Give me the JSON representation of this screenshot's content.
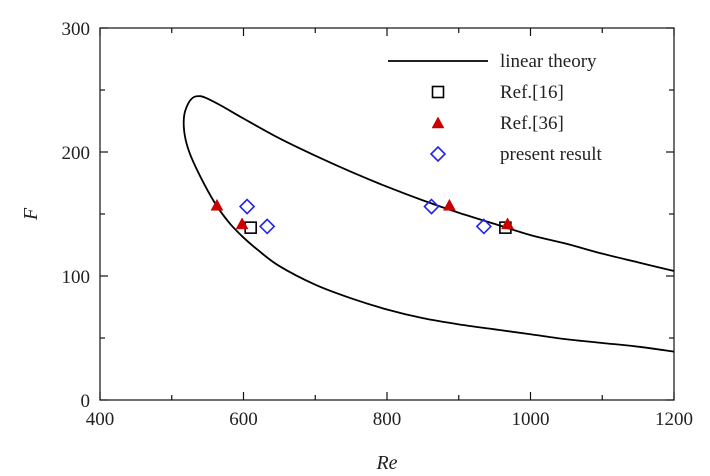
{
  "chart_data": {
    "type": "scatter",
    "title": "",
    "xlabel": "Re",
    "ylabel": "F",
    "xlim": [
      400,
      1200
    ],
    "ylim": [
      0,
      300
    ],
    "xticks": [
      400,
      600,
      800,
      1000,
      1200
    ],
    "yticks": [
      0,
      100,
      200,
      300
    ],
    "grid": false,
    "legend_position": "top-right",
    "series": [
      {
        "name": "linear theory",
        "kind": "line",
        "color": "#000000",
        "points": [
          [
            1200,
            104
          ],
          [
            1150,
            111
          ],
          [
            1100,
            118
          ],
          [
            1050,
            126
          ],
          [
            1000,
            133
          ],
          [
            950,
            142
          ],
          [
            900,
            151
          ],
          [
            850,
            161
          ],
          [
            800,
            172
          ],
          [
            750,
            184
          ],
          [
            700,
            197
          ],
          [
            650,
            211
          ],
          [
            600,
            227
          ],
          [
            570,
            237
          ],
          [
            550,
            243
          ],
          [
            540,
            245
          ],
          [
            530,
            244
          ],
          [
            522,
            238
          ],
          [
            517,
            228
          ],
          [
            518,
            214
          ],
          [
            525,
            199
          ],
          [
            540,
            180
          ],
          [
            560,
            159
          ],
          [
            580,
            143
          ],
          [
            600,
            131
          ],
          [
            620,
            121
          ],
          [
            650,
            108
          ],
          [
            700,
            93
          ],
          [
            750,
            82
          ],
          [
            800,
            73
          ],
          [
            850,
            66
          ],
          [
            900,
            61
          ],
          [
            950,
            57
          ],
          [
            1000,
            53
          ],
          [
            1050,
            49
          ],
          [
            1100,
            46
          ],
          [
            1150,
            43
          ],
          [
            1200,
            39
          ]
        ]
      },
      {
        "name": "Ref.[16]",
        "kind": "marker",
        "marker": "square",
        "color": "#000000",
        "points": [
          [
            610,
            139
          ],
          [
            965,
            139
          ]
        ]
      },
      {
        "name": "Ref.[36]",
        "kind": "marker",
        "marker": "triangle",
        "color": "#cc0000",
        "points": [
          [
            563,
            157
          ],
          [
            598,
            142
          ],
          [
            887,
            157
          ],
          [
            968,
            142
          ]
        ]
      },
      {
        "name": "present  result",
        "kind": "marker",
        "marker": "diamond",
        "color": "#2222ee",
        "points": [
          [
            605,
            156
          ],
          [
            633,
            140
          ],
          [
            862,
            156
          ],
          [
            935,
            140
          ]
        ]
      }
    ]
  }
}
